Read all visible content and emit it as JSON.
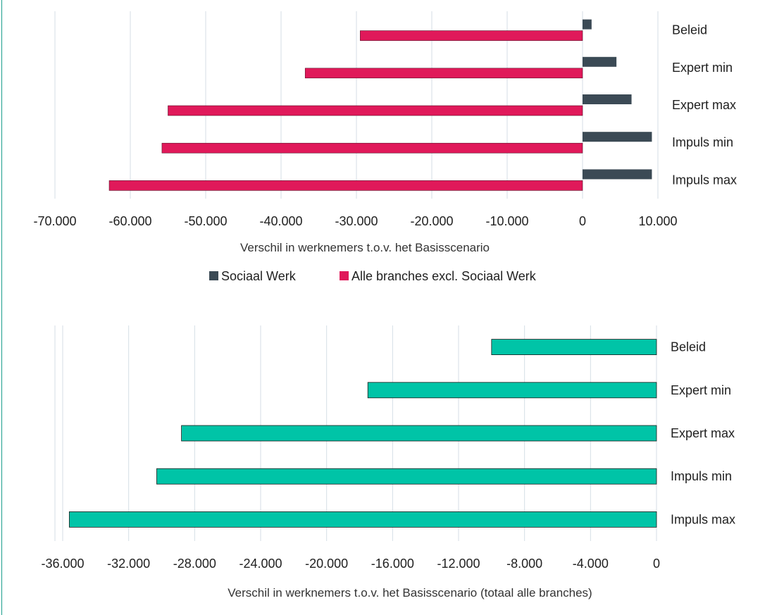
{
  "colors": {
    "sociaal": "#3b4a55",
    "alle": "#e0195a",
    "totaal": "#00c4a7",
    "totaal_stroke": "#1a1a1a",
    "grid": "#d5dee6",
    "border": "#1a9e8c"
  },
  "chart_data": [
    {
      "type": "bar",
      "orientation": "horizontal",
      "categories": [
        "Beleid",
        "Expert min",
        "Expert max",
        "Impuls min",
        "Impuls max"
      ],
      "series": [
        {
          "name": "Sociaal Werk",
          "values": [
            1200,
            4500,
            6500,
            9200,
            9200
          ]
        },
        {
          "name": "Alle branches excl. Sociaal Werk",
          "values": [
            -29500,
            -36800,
            -55000,
            -55800,
            -62800
          ]
        }
      ],
      "xlim": [
        -70000,
        10000
      ],
      "xticks": [
        -70000,
        -60000,
        -50000,
        -40000,
        -30000,
        -20000,
        -10000,
        0,
        10000
      ],
      "xtick_labels": [
        "-70.000",
        "-60.000",
        "-50.000",
        "-40.000",
        "-30.000",
        "-20.000",
        "-10.000",
        "0",
        "10.000"
      ],
      "xlabel": "Verschil in werknemers t.o.v. het Basisscenario",
      "legend": "bottom",
      "grid": true
    },
    {
      "type": "bar",
      "orientation": "horizontal",
      "categories": [
        "Beleid",
        "Expert min",
        "Expert max",
        "Impuls min",
        "Impuls max"
      ],
      "series": [
        {
          "values": [
            -10000,
            -17500,
            -28800,
            -30300,
            -35600
          ]
        }
      ],
      "xlim": [
        -36000,
        0
      ],
      "xticks": [
        -36000,
        -32000,
        -28000,
        -24000,
        -20000,
        -16000,
        -12000,
        -8000,
        -4000,
        0
      ],
      "xtick_labels": [
        "-36.000",
        "-32.000",
        "-28.000",
        "-24.000",
        "-20.000",
        "-16.000",
        "-12.000",
        "-8.000",
        "-4.000",
        "0"
      ],
      "xlabel": "Verschil in werknemers t.o.v. het Basisscenario (totaal alle branches)",
      "grid": true
    }
  ]
}
